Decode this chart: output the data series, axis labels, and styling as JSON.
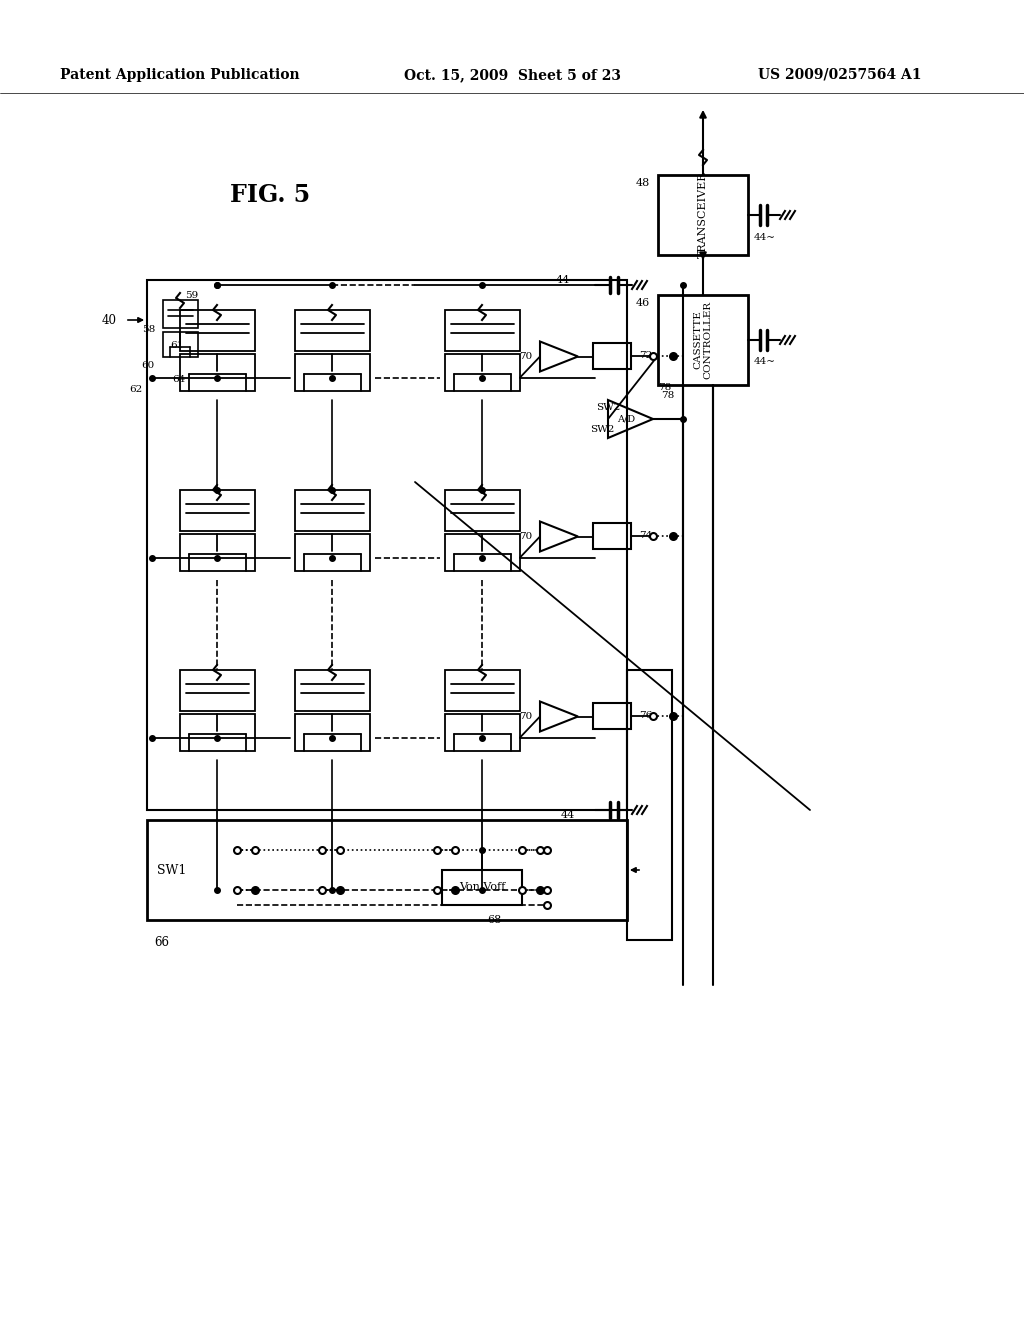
{
  "bg": "#ffffff",
  "header_left": "Patent Application Publication",
  "header_center": "Oct. 15, 2009  Sheet 5 of 23",
  "header_right": "US 2009/0257564 A1",
  "fig_label": "FIG. 5"
}
